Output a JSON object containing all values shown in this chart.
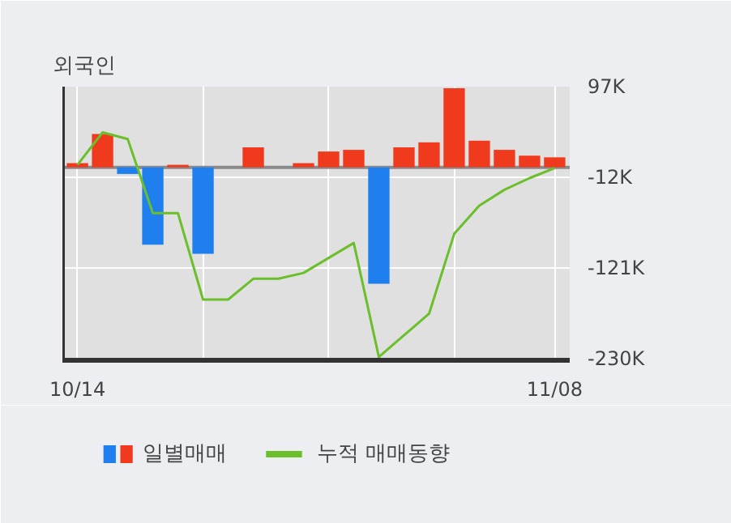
{
  "chart_data": {
    "type": "bar",
    "title": "외국인",
    "categories": [
      "10/14",
      null,
      null,
      null,
      null,
      null,
      null,
      null,
      null,
      null,
      null,
      null,
      null,
      null,
      null,
      null,
      null,
      null,
      null,
      "11/08"
    ],
    "series": [
      {
        "name": "일별매매",
        "colors": [
          "#f03a1e",
          "#f03a1e",
          "#1f7fef",
          "#1f7fef",
          "#f03a1e",
          "#1f7fef",
          "#f03a1e",
          "#f03a1e",
          "#f03a1e",
          "#f03a1e",
          "#f03a1e",
          "#f03a1e",
          "#1f7fef",
          "#f03a1e",
          "#f03a1e",
          "#f03a1e",
          "#f03a1e",
          "#f03a1e",
          "#f03a1e",
          "#f03a1e"
        ],
        "values": [
          5,
          40,
          -8,
          -93,
          3,
          -104,
          null,
          24,
          null,
          5,
          19,
          21,
          -140,
          24,
          30,
          95,
          32,
          21,
          14,
          12
        ]
      },
      {
        "name": "누적 매매동향",
        "type": "line",
        "color": "#6abf2a",
        "values": [
          3,
          42,
          34,
          -55,
          -55,
          -159,
          -159,
          -134,
          -134,
          -127,
          -109,
          -91,
          -228,
          -202,
          -176,
          -80,
          -46,
          -27,
          -13,
          -1
        ]
      }
    ],
    "ylim": [
      -232,
      97
    ],
    "yticks": [
      {
        "value": 97,
        "label": "97K"
      },
      {
        "value": -12,
        "label": "-12K"
      },
      {
        "value": -121,
        "label": "-121K"
      },
      {
        "value": -230,
        "label": "-230K"
      }
    ],
    "grid": true,
    "legend": "bottom"
  }
}
